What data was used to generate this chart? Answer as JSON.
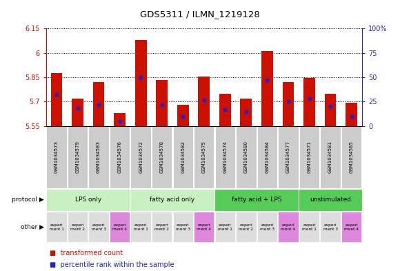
{
  "title": "GDS5311 / ILMN_1219128",
  "samples": [
    "GSM1034573",
    "GSM1034579",
    "GSM1034583",
    "GSM1034576",
    "GSM1034572",
    "GSM1034578",
    "GSM1034582",
    "GSM1034575",
    "GSM1034574",
    "GSM1034580",
    "GSM1034584",
    "GSM1034577",
    "GSM1034571",
    "GSM1034581",
    "GSM1034585"
  ],
  "transformed_count": [
    5.875,
    5.72,
    5.82,
    5.63,
    6.08,
    5.835,
    5.68,
    5.855,
    5.75,
    5.72,
    6.01,
    5.82,
    5.845,
    5.75,
    5.695
  ],
  "percentile_rank": [
    32,
    18,
    22,
    5,
    50,
    22,
    10,
    27,
    17,
    15,
    47,
    25,
    28,
    20,
    10
  ],
  "ylim_left": [
    5.55,
    6.15
  ],
  "ylim_right": [
    0,
    100
  ],
  "yticks_left": [
    5.55,
    5.7,
    5.85,
    6.0,
    6.15
  ],
  "yticks_right": [
    0,
    25,
    50,
    75,
    100
  ],
  "ytick_labels_left": [
    "5.55",
    "5.7",
    "5.85",
    "6",
    "6.15"
  ],
  "ytick_labels_right": [
    "0",
    "25",
    "50",
    "75",
    "100%"
  ],
  "protocols": [
    {
      "label": "LPS only",
      "start": 0,
      "end": 4,
      "color": "#c8f0c0"
    },
    {
      "label": "fatty acid only",
      "start": 4,
      "end": 8,
      "color": "#c8f0c0"
    },
    {
      "label": "fatty acid + LPS",
      "start": 8,
      "end": 12,
      "color": "#55cc55"
    },
    {
      "label": "unstimulated",
      "start": 12,
      "end": 15,
      "color": "#55cc55"
    }
  ],
  "experiments": [
    "experi\nment 1",
    "experi\nment 2",
    "experi\nment 3",
    "experi\nment 4",
    "experi\nment 1",
    "experi\nment 2",
    "experi\nment 3",
    "experi\nment 4",
    "experi\nment 1",
    "experi\nment 2",
    "experi\nment 3",
    "experi\nment 4",
    "experi\nment 1",
    "experi\nment 3",
    "experi\nment 4"
  ],
  "exp_colors": [
    "#dddddd",
    "#dddddd",
    "#dddddd",
    "#dd88dd",
    "#dddddd",
    "#dddddd",
    "#dddddd",
    "#dd88dd",
    "#dddddd",
    "#dddddd",
    "#dddddd",
    "#dd88dd",
    "#dddddd",
    "#dddddd",
    "#dd88dd"
  ],
  "bar_color": "#cc1100",
  "dot_color": "#2222cc",
  "axis_color_left": "#cc1100",
  "axis_color_right": "#2222cc",
  "sample_bg": "#cccccc",
  "bg_color": "#ffffff"
}
